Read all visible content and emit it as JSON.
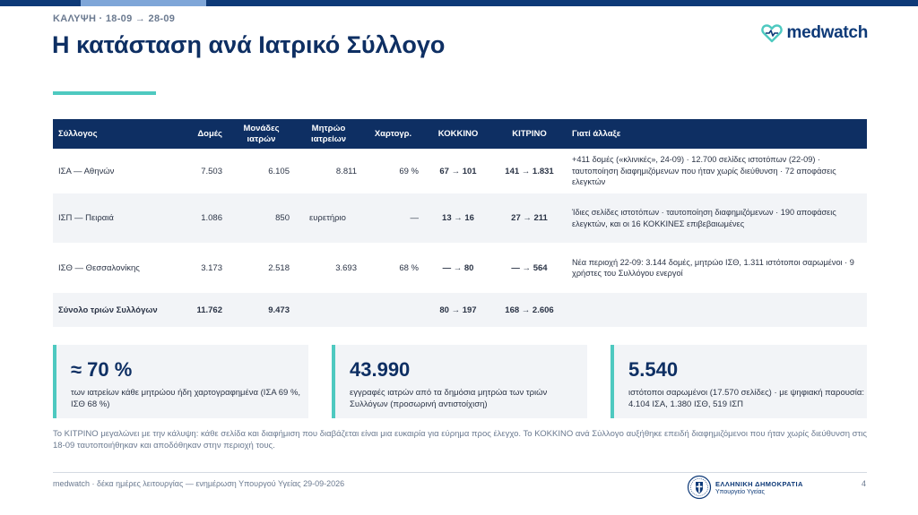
{
  "header": {
    "kicker": "ΚΑΛΥΨΗ · 18-09 → 28-09",
    "title": "Η κατάσταση ανά Ιατρικό Σύλλογο",
    "logo_text": "medwatch"
  },
  "table": {
    "columns": [
      "Σύλλογος",
      "Δομές",
      "Μονάδες ιατρών",
      "Μητρώο ιατρείων",
      "Χαρτογρ.",
      "ΚΟΚΚΙΝΟ",
      "ΚΙΤΡΙΝΟ",
      "Γιατί άλλαξε"
    ],
    "rows": [
      {
        "name": "ΙΣΑ — Αθηνών",
        "domes": "7.503",
        "monades": "6.105",
        "mitroo": "8.811",
        "xartogr": "69 %",
        "kokkino": "67 → 101",
        "kitrino": "141 → 1.831",
        "why": "+411 δομές («κλινικές», 24-09) · 12.700 σελίδες ιστοτόπων (22-09) · ταυτοποίηση διαφημιζόμενων που ήταν χωρίς διεύθυνση · 72 αποφάσεις ελεγκτών"
      },
      {
        "name": "ΙΣΠ — Πειραιά",
        "domes": "1.086",
        "monades": "850",
        "mitroo": "ευρετήριο",
        "xartogr": "—",
        "kokkino": "13 → 16",
        "kitrino": "27 → 211",
        "why": "Ίδιες σελίδες ιστοτόπων · ταυτοποίηση διαφημιζόμενων · 190 αποφάσεις ελεγκτών, και οι 16 ΚΟΚΚΙΝΕΣ επιβεβαιωμένες"
      },
      {
        "name": "ΙΣΘ — Θεσσαλονίκης",
        "domes": "3.173",
        "monades": "2.518",
        "mitroo": "3.693",
        "xartogr": "68 %",
        "kokkino": "— → 80",
        "kitrino": "— → 564",
        "why": "Νέα περιοχή 22-09: 3.144 δομές, μητρώο ΙΣΘ, 1.311 ιστότοποι σαρωμένοι · 9 χρήστες του Συλλόγου ενεργοί"
      }
    ],
    "total": {
      "name": "Σύνολο τριών Συλλόγων",
      "domes": "11.762",
      "monades": "9.473",
      "kokkino": "80 → 197",
      "kitrino": "168 → 2.606"
    }
  },
  "cards": [
    {
      "value": "≈ 70 %",
      "text": "των ιατρείων κάθε μητρώου ήδη χαρτογραφημένα (ΙΣΑ 69 %, ΙΣΘ 68 %)"
    },
    {
      "value": "43.990",
      "text": "εγγραφές ιατρών από τα δημόσια μητρώα των τριών Συλλόγων (προσωρινή αντιστοίχιση)"
    },
    {
      "value": "5.540",
      "text": "ιστότοποι σαρωμένοι (17.570 σελίδες) · με ψηφιακή παρουσία: 4.104 ΙΣΑ, 1.380 ΙΣΘ, 519 ΙΣΠ"
    }
  ],
  "footnote": "Το ΚΙΤΡΙΝΟ μεγαλώνει με την κάλυψη: κάθε σελίδα και διαφήμιση που διαβάζεται είναι μια ευκαιρία για εύρημα προς έλεγχο. Το ΚΟΚΚΙΝΟ ανά Σύλλογο αυξήθηκε επειδή διαφημιζόμενοι που ήταν χωρίς διεύθυνση στις 18-09 ταυτοποιήθηκαν και αποδόθηκαν στην περιοχή τους.",
  "footer": {
    "left": "medwatch · δέκα ημέρες λειτουργίας — ενημέρωση Υπουργού Υγείας 29-09-2026",
    "gov_line1": "ΕΛΛΗΝΙΚΗ ΔΗΜΟΚΡΑΤΙΑ",
    "gov_line2": "Υπουργείο Υγείας",
    "page": "4"
  },
  "colors": {
    "navy": "#0e2f63",
    "teal": "#4ec9c0",
    "red": "#b3122a",
    "gold": "#c98a08"
  }
}
